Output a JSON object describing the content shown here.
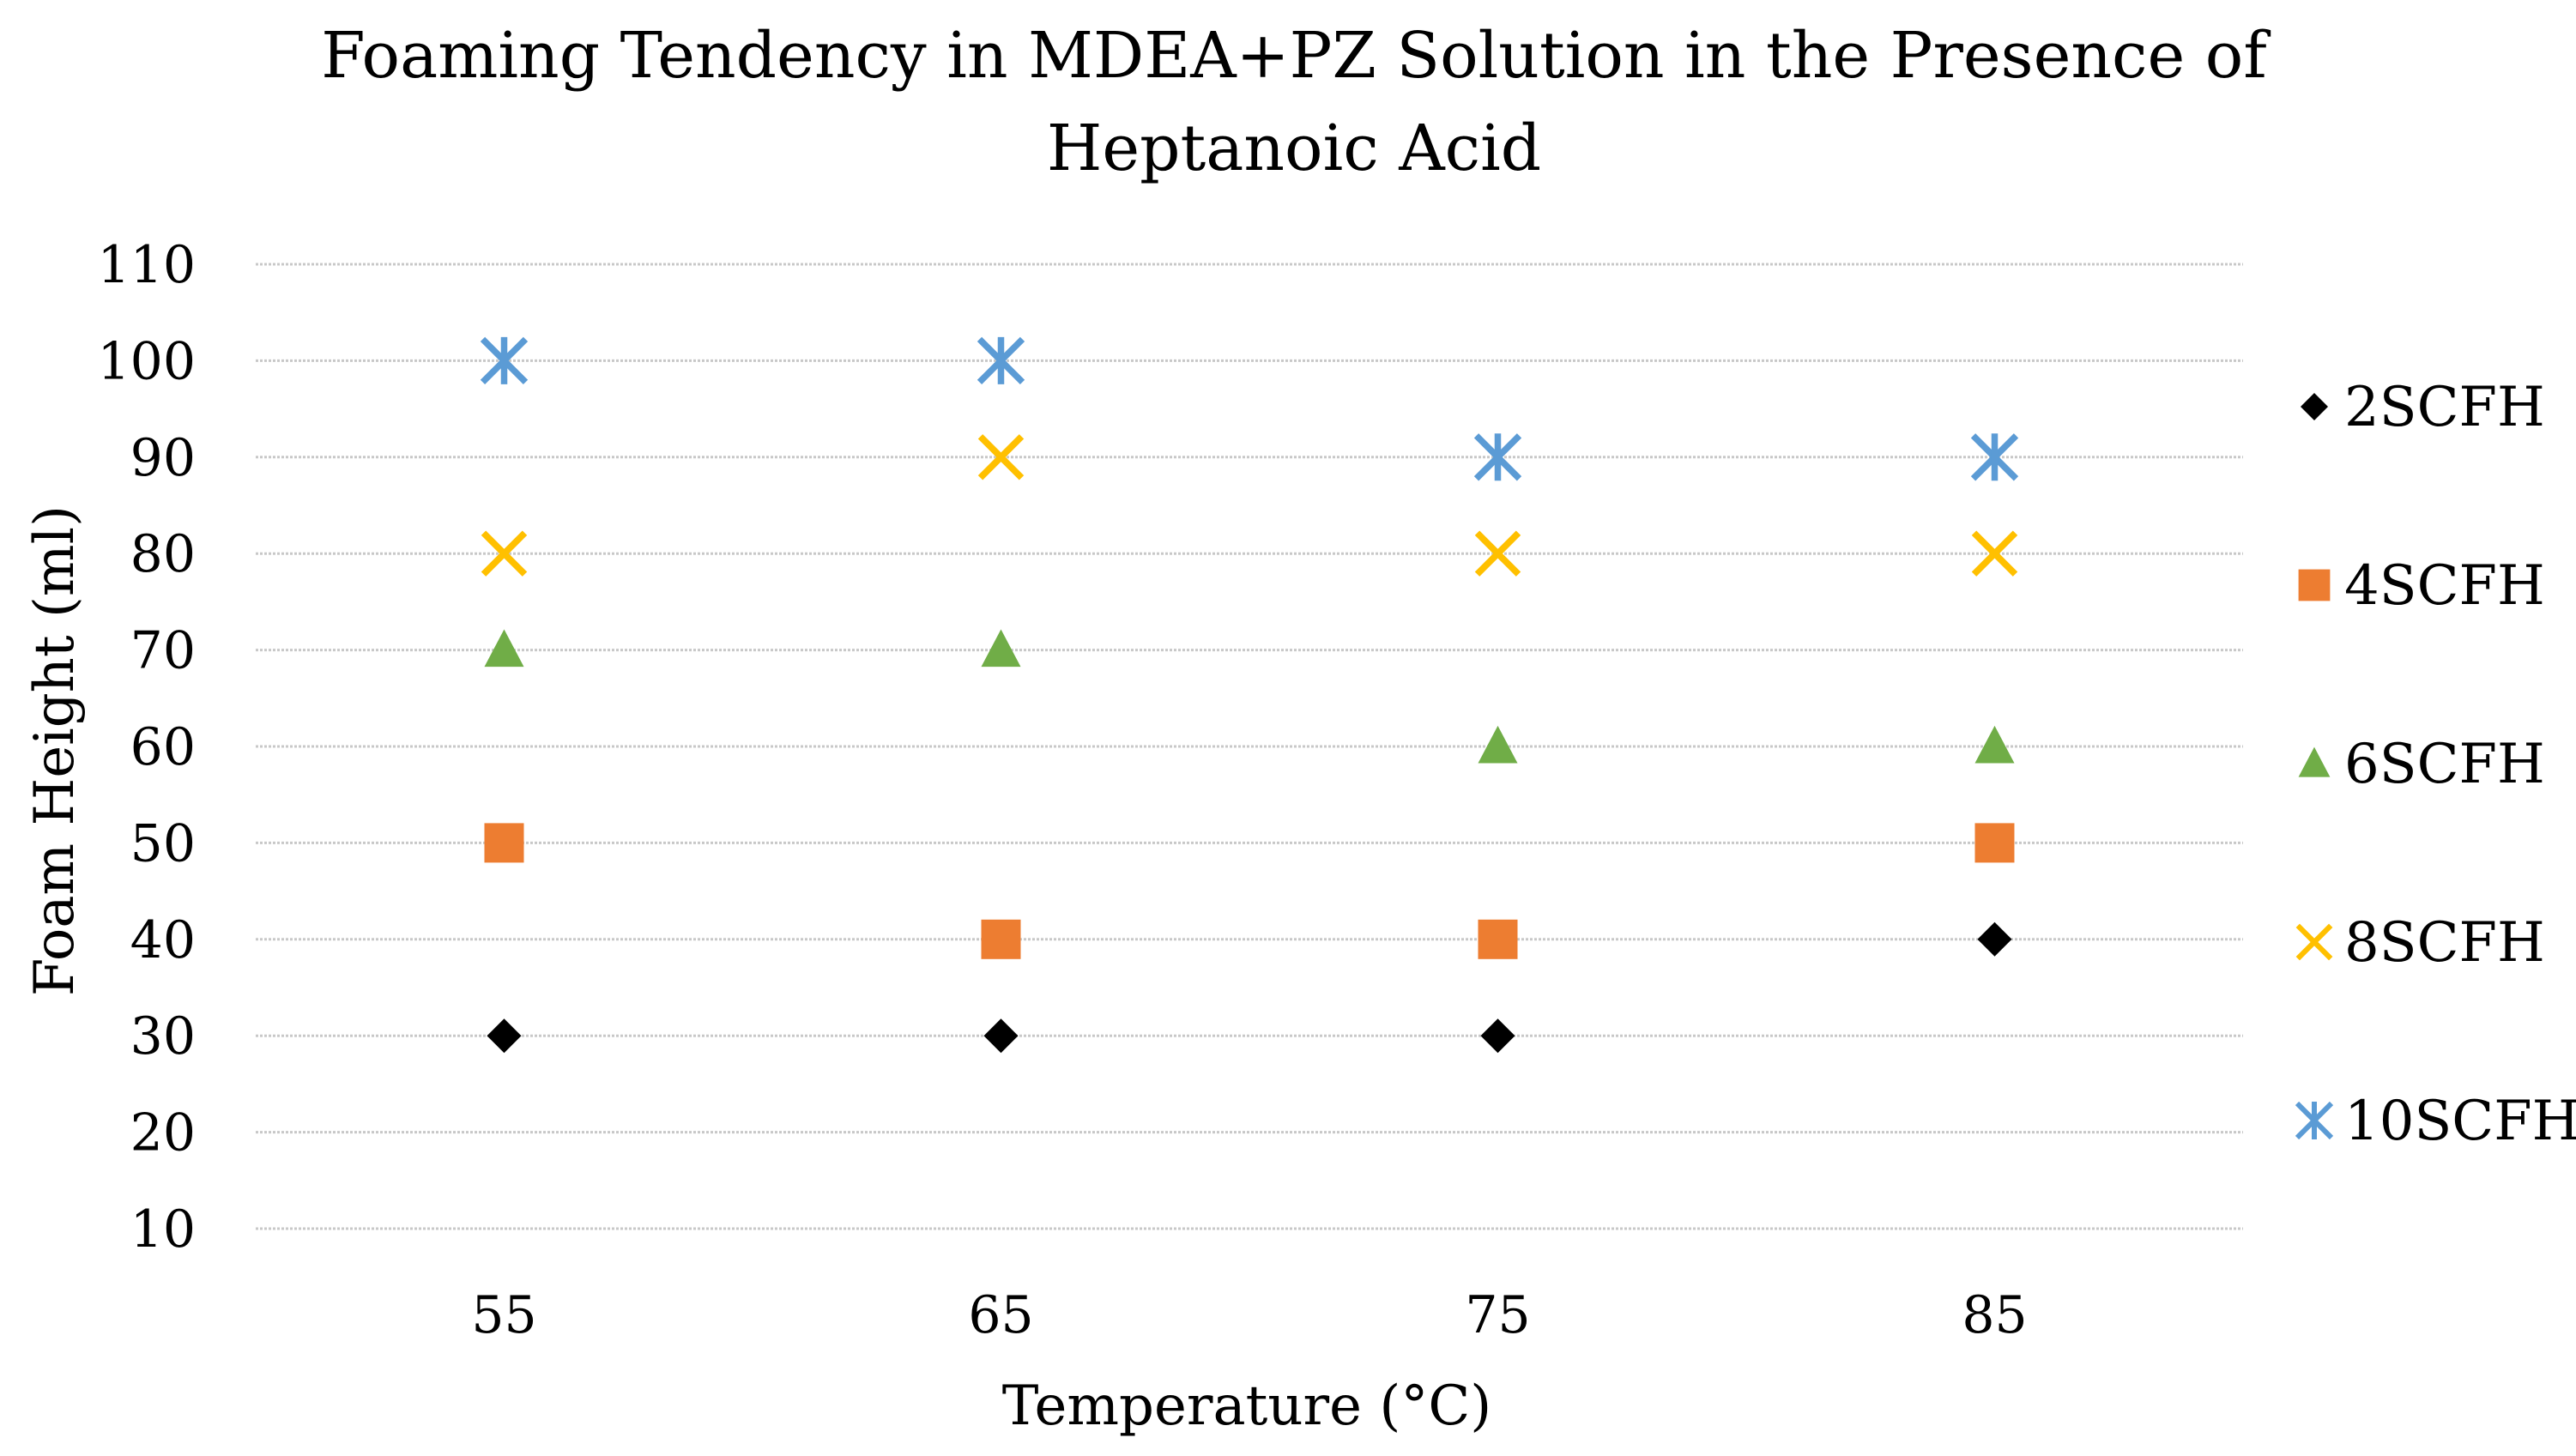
{
  "chart_data": {
    "type": "scatter",
    "title_lines": [
      "Foaming Tendency in MDEA+PZ Solution in the Presence of",
      "Heptanoic Acid"
    ],
    "xlabel": "Temperature (°C)",
    "ylabel": "Foam Height (ml)",
    "categories": [
      "55",
      "65",
      "75",
      "85"
    ],
    "ylim": [
      10,
      110
    ],
    "yticks": [
      "10",
      "20",
      "30",
      "40",
      "50",
      "60",
      "70",
      "80",
      "90",
      "100",
      "110"
    ],
    "grid": true,
    "legend_position": "right",
    "series": [
      {
        "name": "2SCFH",
        "marker": "diamond",
        "color": "#000000",
        "values": [
          30,
          30,
          30,
          40
        ]
      },
      {
        "name": "4SCFH",
        "marker": "square",
        "color": "#ED7D31",
        "values": [
          50,
          40,
          40,
          50
        ]
      },
      {
        "name": "6SCFH",
        "marker": "triangle",
        "color": "#70AD47",
        "values": [
          70,
          70,
          60,
          60
        ]
      },
      {
        "name": "8SCFH",
        "marker": "x",
        "color": "#FFC000",
        "values": [
          80,
          90,
          80,
          80
        ]
      },
      {
        "name": "10SCFH",
        "marker": "asterisk",
        "color": "#5B9BD5",
        "values": [
          100,
          100,
          90,
          90
        ]
      }
    ]
  }
}
